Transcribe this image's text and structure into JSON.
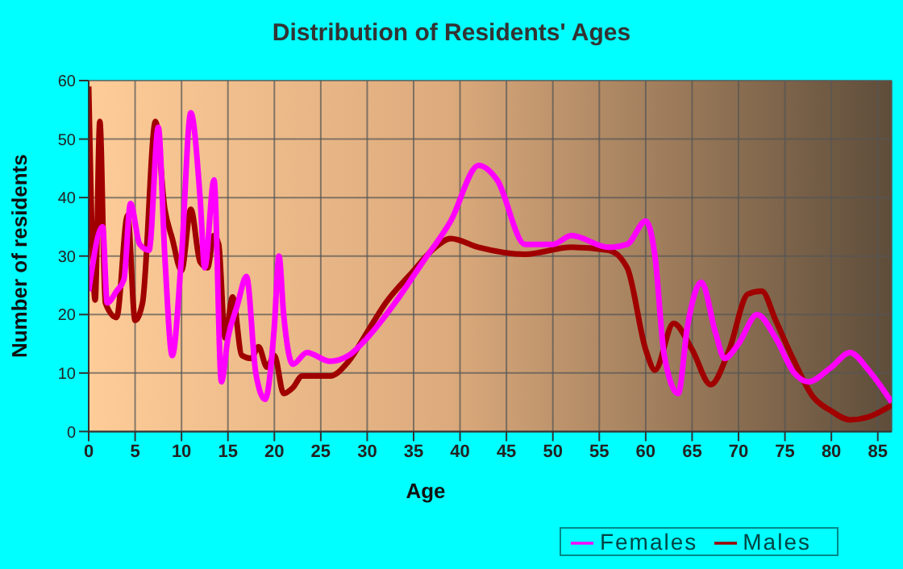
{
  "chart_data": {
    "type": "line",
    "title": "Distribution of Residents' Ages",
    "xlabel": "Age",
    "ylabel": "Number of residents",
    "xlim": [
      0,
      86.5
    ],
    "xticks": [
      0,
      5,
      10,
      15,
      20,
      25,
      30,
      35,
      40,
      45,
      50,
      55,
      60,
      65,
      70,
      75,
      80,
      85
    ],
    "ylim": [
      0,
      60
    ],
    "yticks": [
      0,
      10,
      20,
      30,
      40,
      50,
      60
    ],
    "grid": true,
    "legend": "bottom right",
    "marker": "none",
    "line_style": "solid",
    "series": [
      {
        "name": "Males",
        "color": "#a00000",
        "x": [
          0,
          0.7,
          1.2,
          1.8,
          3,
          4.2,
          5,
          5.8,
          7.2,
          8.2,
          9,
          10,
          11,
          12,
          12.8,
          13.5,
          14,
          14.7,
          15.5,
          16.5,
          17.5,
          18.3,
          19.2,
          20,
          21,
          22,
          23,
          26,
          28,
          30,
          32,
          35,
          37,
          39,
          42,
          47,
          52,
          56,
          58,
          60,
          61,
          63,
          65,
          67,
          69,
          71,
          72.5,
          74,
          76,
          78,
          80,
          82,
          84,
          86.5
        ],
        "values": [
          59,
          22.5,
          53,
          22,
          19.5,
          37,
          19,
          22,
          53,
          38,
          33,
          27.5,
          38,
          29,
          28,
          33.5,
          32,
          16,
          23,
          13,
          12.5,
          14.5,
          11,
          13,
          6.5,
          7.5,
          9.5,
          9.5,
          12,
          17,
          22,
          27.5,
          31,
          33,
          31.5,
          30.3,
          31.5,
          31,
          28,
          14,
          10.5,
          18.5,
          14,
          8,
          14,
          23.5,
          24,
          19,
          12,
          6,
          3.5,
          2,
          2.5,
          4.5
        ]
      },
      {
        "name": "Females",
        "color": "#ff00ff",
        "x": [
          0,
          1.5,
          2,
          3,
          3.8,
          4.5,
          5.5,
          6.5,
          7.5,
          8.2,
          9,
          10,
          11,
          12,
          12.5,
          13.5,
          14.3,
          15,
          16,
          17,
          18,
          19,
          20,
          20.5,
          21,
          22,
          23.5,
          26,
          28,
          30,
          33,
          36,
          39,
          42,
          44,
          47,
          50,
          52,
          56,
          58,
          60,
          61,
          62,
          63.5,
          64.5,
          66,
          67.5,
          68.5,
          70,
          72,
          74,
          76,
          77.5,
          80,
          82,
          84,
          86.5
        ],
        "values": [
          24,
          35,
          22,
          24,
          26,
          39,
          32,
          31,
          52,
          30,
          13,
          30,
          54.5,
          40,
          28,
          43,
          8.5,
          16,
          21.5,
          26.5,
          10,
          5.5,
          18,
          30,
          20,
          11.5,
          13.5,
          12,
          13,
          16,
          22,
          29,
          36,
          45.5,
          43,
          32,
          32,
          33.5,
          31.5,
          32,
          36,
          30,
          13,
          6.5,
          18,
          25.5,
          17,
          12.5,
          15,
          20,
          16,
          10,
          8.5,
          11,
          13.5,
          10.5,
          5
        ]
      }
    ]
  }
}
